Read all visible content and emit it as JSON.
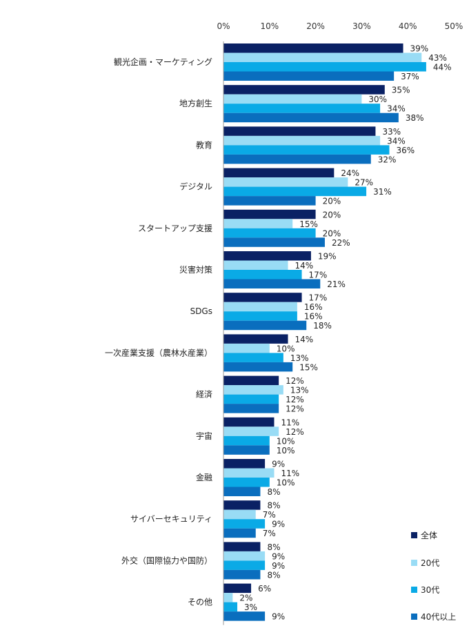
{
  "chart_data": {
    "type": "bar",
    "orientation": "horizontal",
    "categories": [
      "観光企画・マーケティング",
      "地方創生",
      "教育",
      "デジタル",
      "スタートアップ支援",
      "災害対策",
      "SDGs",
      "一次産業支援（農林水産業）",
      "経済",
      "宇宙",
      "金融",
      "サイバーセキュリティ",
      "外交（国際協力や国防）",
      "その他"
    ],
    "series": [
      {
        "name": "全体",
        "color": "#0a2164",
        "values": [
          39,
          35,
          33,
          24,
          20,
          19,
          17,
          14,
          12,
          11,
          9,
          8,
          8,
          6
        ]
      },
      {
        "name": "20代",
        "color": "#99dcf5",
        "values": [
          43,
          30,
          34,
          27,
          15,
          14,
          16,
          10,
          13,
          12,
          11,
          7,
          9,
          2
        ]
      },
      {
        "name": "30代",
        "color": "#0aaae6",
        "values": [
          44,
          34,
          36,
          31,
          20,
          17,
          16,
          13,
          12,
          10,
          10,
          9,
          9,
          3
        ]
      },
      {
        "name": "40代以上",
        "color": "#0a6ebe",
        "values": [
          37,
          38,
          32,
          20,
          22,
          21,
          18,
          15,
          12,
          10,
          8,
          7,
          8,
          9
        ]
      }
    ],
    "xlim": [
      0,
      50
    ],
    "xticks": [
      "0%",
      "10%",
      "20%",
      "30%",
      "40%",
      "50%"
    ],
    "value_suffix": "%",
    "legend_position": "bottom-right",
    "grid": false
  }
}
